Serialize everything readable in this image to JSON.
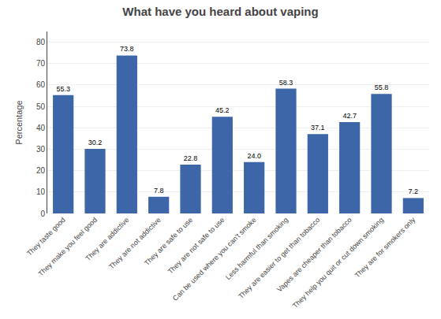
{
  "chart_data": {
    "type": "bar",
    "title": "What have you heard about vaping",
    "ylabel": "Percentage",
    "categories": [
      "They taste good",
      "They make you feel good",
      "They are addictive",
      "They are not addictive",
      "They are safe to use",
      "They are not safe to use",
      "Can be used where you can't smoke",
      "Less harmful than smoking",
      "They are easier to get than tobacco",
      "Vapes are cheaper than tobacco",
      "They help you quit or cut down smoking",
      "They are for smokers only"
    ],
    "values": [
      55.3,
      30.2,
      73.8,
      7.8,
      22.8,
      45.2,
      24.0,
      58.3,
      37.1,
      42.7,
      55.8,
      7.2
    ],
    "value_labels": [
      "55.3",
      "30.2",
      "73.8",
      "7.8",
      "22.8",
      "45.2",
      "24.0",
      "58.3",
      "37.1",
      "42.7",
      "55.8",
      "7.2"
    ],
    "color": "#3C66A8",
    "ylim": [
      0,
      85
    ],
    "yticks": [
      0,
      10,
      20,
      30,
      40,
      50,
      60,
      70,
      80
    ],
    "grid": true,
    "data_labels": true
  }
}
